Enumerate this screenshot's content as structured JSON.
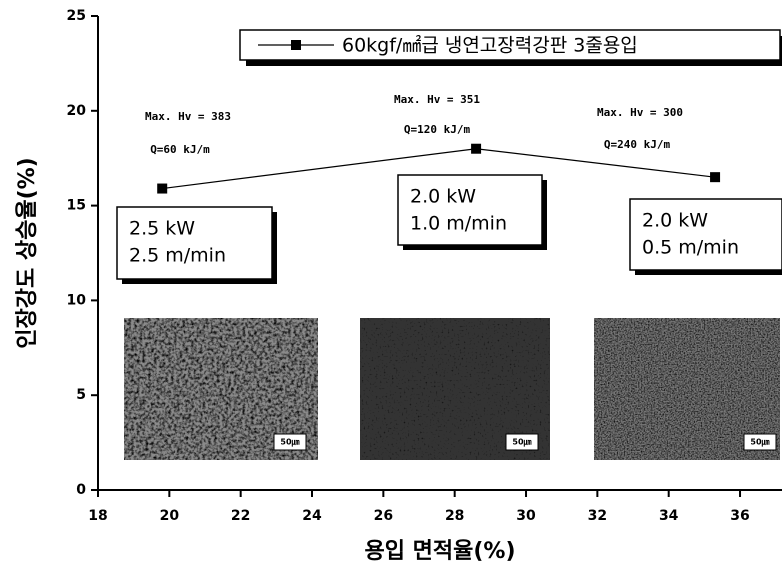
{
  "chart_data": {
    "type": "line",
    "x_label": "용입 면적율(%)",
    "y_label": "인장강도 상승율(%)",
    "x": [
      19.8,
      28.6,
      35.3
    ],
    "series": [
      {
        "name": "60kgf/㎟급 냉연고장력강판 3줄용입",
        "color": "#000000",
        "values": [
          15.9,
          18.0,
          16.5
        ]
      }
    ],
    "xlim": [
      18,
      37
    ],
    "xticks": [
      18,
      20,
      22,
      24,
      26,
      28,
      30,
      32,
      34,
      36
    ],
    "ylim": [
      0,
      25
    ],
    "yticks": [
      0,
      5,
      10,
      15,
      20,
      25
    ],
    "legend": "top-right",
    "annotations": [
      [
        "Max. Hv = 383",
        "Q=60 kJ/m"
      ],
      [
        "Max. Hv = 351",
        "Q=120 kJ/m"
      ],
      [
        "Max. Hv = 300",
        "Q=240 kJ/m"
      ]
    ],
    "condition_boxes": [
      [
        "2.5 kW",
        "2.5 m/min"
      ],
      [
        "2.0 kW",
        "1.0 m/min"
      ],
      [
        "2.0 kW",
        "0.5 m/min"
      ]
    ],
    "micrograph_scales": [
      "50㎛",
      "50㎛",
      "50㎛"
    ]
  }
}
